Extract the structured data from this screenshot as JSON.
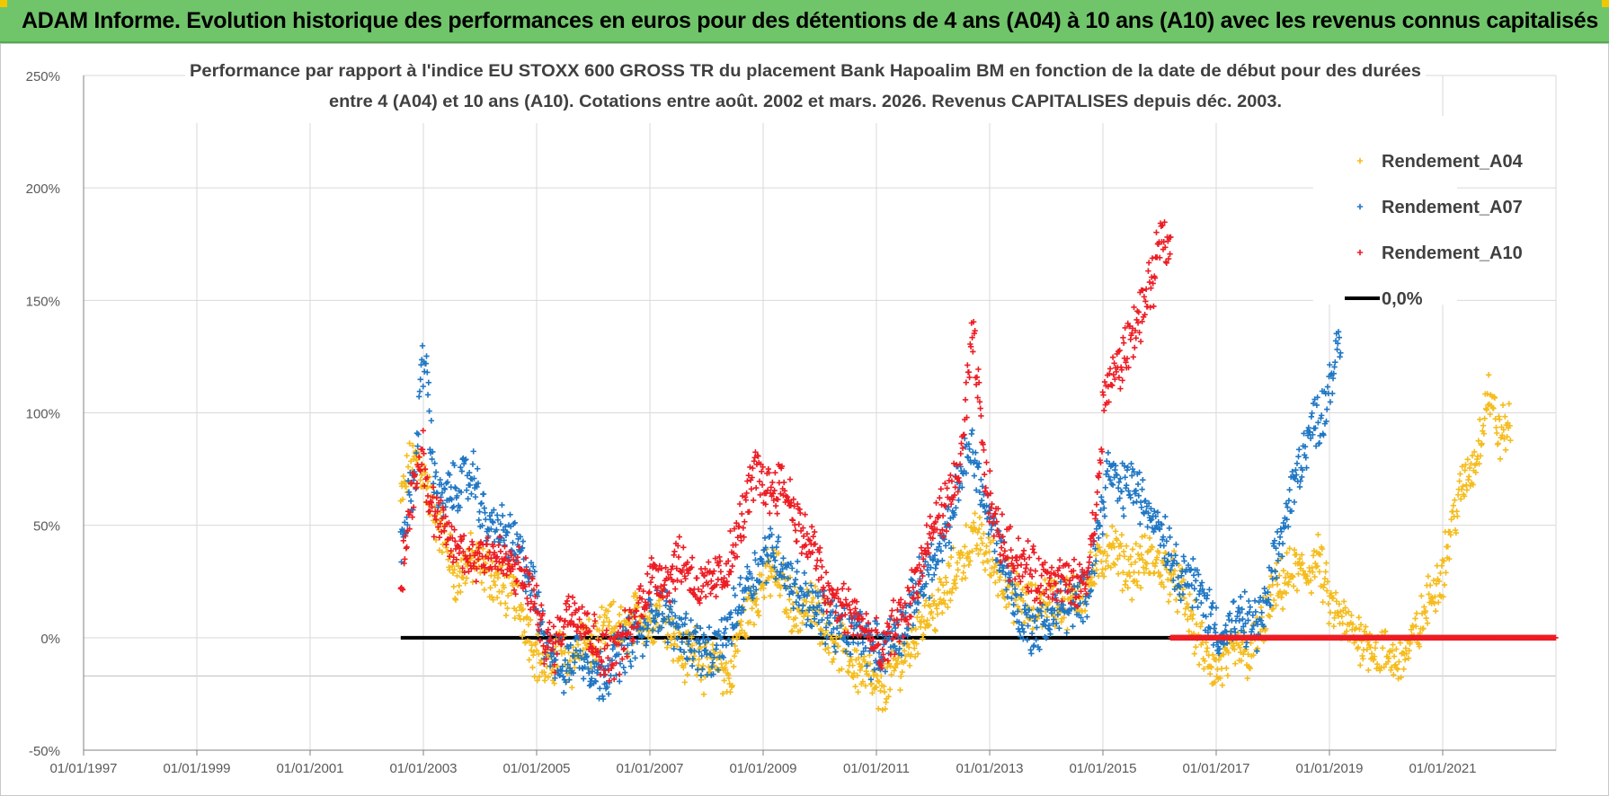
{
  "header": {
    "banner_title": "ADAM Informe. Evolution historique des performances en euros pour des détentions de 4 ans (A04) à 10 ans (A10) avec les revenus connus capitalisés"
  },
  "colors": {
    "banner": "#70c46a",
    "a04": "#f5bc1c",
    "a07": "#1f77c4",
    "a10": "#ee1c24",
    "zero": "#000000",
    "grid": "#d9d9d9"
  },
  "chart_data": {
    "type": "scatter",
    "title_line1": "Performance par rapport à l'indice EU STOXX 600 GROSS TR  du placement Bank Hapoalim BM en fonction de la date de début pour des durées",
    "title_line2": "entre 4 (A04) et 10 ans (A10). Cotations entre août. 2002 et mars. 2026. Revenus CAPITALISES depuis déc. 2003.",
    "x_range": [
      1997.0,
      2023.0
    ],
    "x_ticks": [
      {
        "label": "01/01/1997",
        "value": 1997
      },
      {
        "label": "01/01/1999",
        "value": 1999
      },
      {
        "label": "01/01/2001",
        "value": 2001
      },
      {
        "label": "01/01/2003",
        "value": 2003
      },
      {
        "label": "01/01/2005",
        "value": 2005
      },
      {
        "label": "01/01/2007",
        "value": 2007
      },
      {
        "label": "01/01/2009",
        "value": 2009
      },
      {
        "label": "01/01/2011",
        "value": 2011
      },
      {
        "label": "01/01/2013",
        "value": 2013
      },
      {
        "label": "01/01/2015",
        "value": 2015
      },
      {
        "label": "01/01/2017",
        "value": 2017
      },
      {
        "label": "01/01/2019",
        "value": 2019
      },
      {
        "label": "01/01/2021",
        "value": 2021
      }
    ],
    "y_range": [
      -50,
      250
    ],
    "y_ticks": [
      {
        "label": "-50%",
        "value": -50
      },
      {
        "label": "0%",
        "value": 0
      },
      {
        "label": "50%",
        "value": 50
      },
      {
        "label": "100%",
        "value": 100
      },
      {
        "label": "150%",
        "value": 150
      },
      {
        "label": "200%",
        "value": 200
      },
      {
        "label": "250%",
        "value": 250
      }
    ],
    "extra_gridline": -17,
    "series": [
      {
        "name": "Rendement_A04",
        "color": "#f5bc1c",
        "x_start": 2002.6,
        "x_end": 2022.2,
        "points": [
          [
            2002.6,
            60
          ],
          [
            2002.75,
            75
          ],
          [
            2002.9,
            80
          ],
          [
            2003.0,
            72
          ],
          [
            2003.2,
            55
          ],
          [
            2003.4,
            42
          ],
          [
            2003.6,
            25
          ],
          [
            2003.8,
            35
          ],
          [
            2004.0,
            32
          ],
          [
            2004.2,
            28
          ],
          [
            2004.4,
            22
          ],
          [
            2004.6,
            20
          ],
          [
            2004.8,
            8
          ],
          [
            2005.0,
            -8
          ],
          [
            2005.2,
            -15
          ],
          [
            2005.4,
            -5
          ],
          [
            2005.6,
            -12
          ],
          [
            2005.8,
            -2
          ],
          [
            2006.0,
            -5
          ],
          [
            2006.3,
            5
          ],
          [
            2006.6,
            2
          ],
          [
            2006.8,
            12
          ],
          [
            2007.0,
            5
          ],
          [
            2007.2,
            15
          ],
          [
            2007.4,
            3
          ],
          [
            2007.6,
            -10
          ],
          [
            2007.8,
            -2
          ],
          [
            2008.0,
            -15
          ],
          [
            2008.2,
            -8
          ],
          [
            2008.4,
            -20
          ],
          [
            2008.6,
            5
          ],
          [
            2008.8,
            15
          ],
          [
            2009.0,
            25
          ],
          [
            2009.2,
            30
          ],
          [
            2009.4,
            20
          ],
          [
            2009.6,
            10
          ],
          [
            2009.8,
            15
          ],
          [
            2010.0,
            10
          ],
          [
            2010.3,
            -2
          ],
          [
            2010.6,
            -12
          ],
          [
            2010.9,
            -18
          ],
          [
            2011.0,
            -25
          ],
          [
            2011.2,
            -20
          ],
          [
            2011.4,
            -10
          ],
          [
            2011.6,
            -5
          ],
          [
            2011.8,
            10
          ],
          [
            2012.0,
            12
          ],
          [
            2012.2,
            18
          ],
          [
            2012.4,
            30
          ],
          [
            2012.6,
            40
          ],
          [
            2012.8,
            45
          ],
          [
            2013.0,
            35
          ],
          [
            2013.2,
            28
          ],
          [
            2013.4,
            20
          ],
          [
            2013.6,
            15
          ],
          [
            2013.8,
            12
          ],
          [
            2014.0,
            18
          ],
          [
            2014.3,
            15
          ],
          [
            2014.6,
            20
          ],
          [
            2014.9,
            30
          ],
          [
            2015.1,
            42
          ],
          [
            2015.3,
            35
          ],
          [
            2015.5,
            30
          ],
          [
            2015.8,
            35
          ],
          [
            2016.0,
            32
          ],
          [
            2016.2,
            28
          ],
          [
            2016.4,
            20
          ],
          [
            2016.6,
            5
          ],
          [
            2016.8,
            -8
          ],
          [
            2017.0,
            -15
          ],
          [
            2017.2,
            -10
          ],
          [
            2017.4,
            -5
          ],
          [
            2017.6,
            -8
          ],
          [
            2017.8,
            5
          ],
          [
            2018.0,
            18
          ],
          [
            2018.2,
            25
          ],
          [
            2018.4,
            30
          ],
          [
            2018.6,
            28
          ],
          [
            2018.8,
            35
          ],
          [
            2019.0,
            15
          ],
          [
            2019.2,
            8
          ],
          [
            2019.4,
            2
          ],
          [
            2019.6,
            0
          ],
          [
            2019.8,
            -5
          ],
          [
            2020.0,
            -8
          ],
          [
            2020.2,
            -10
          ],
          [
            2020.4,
            -5
          ],
          [
            2020.6,
            5
          ],
          [
            2020.8,
            20
          ],
          [
            2021.0,
            30
          ],
          [
            2021.2,
            55
          ],
          [
            2021.4,
            70
          ],
          [
            2021.6,
            80
          ],
          [
            2021.8,
            110
          ],
          [
            2022.0,
            90
          ],
          [
            2022.2,
            95
          ]
        ]
      },
      {
        "name": "Rendement_A07",
        "color": "#1f77c4",
        "x_start": 2002.6,
        "x_end": 2019.2,
        "points": [
          [
            2002.6,
            40
          ],
          [
            2002.7,
            55
          ],
          [
            2002.85,
            70
          ],
          [
            2002.95,
            115
          ],
          [
            2003.05,
            125
          ],
          [
            2003.15,
            80
          ],
          [
            2003.3,
            60
          ],
          [
            2003.5,
            65
          ],
          [
            2003.7,
            70
          ],
          [
            2003.9,
            72
          ],
          [
            2004.1,
            50
          ],
          [
            2004.3,
            48
          ],
          [
            2004.5,
            45
          ],
          [
            2004.7,
            38
          ],
          [
            2004.9,
            25
          ],
          [
            2005.1,
            5
          ],
          [
            2005.3,
            -8
          ],
          [
            2005.5,
            -15
          ],
          [
            2005.7,
            -5
          ],
          [
            2005.9,
            -10
          ],
          [
            2006.1,
            -18
          ],
          [
            2006.3,
            -12
          ],
          [
            2006.5,
            -5
          ],
          [
            2006.7,
            0
          ],
          [
            2006.9,
            2
          ],
          [
            2007.1,
            15
          ],
          [
            2007.3,
            10
          ],
          [
            2007.5,
            5
          ],
          [
            2007.7,
            0
          ],
          [
            2007.9,
            -5
          ],
          [
            2008.1,
            -10
          ],
          [
            2008.3,
            0
          ],
          [
            2008.5,
            10
          ],
          [
            2008.7,
            25
          ],
          [
            2008.9,
            30
          ],
          [
            2009.1,
            40
          ],
          [
            2009.3,
            35
          ],
          [
            2009.5,
            25
          ],
          [
            2009.7,
            20
          ],
          [
            2009.9,
            12
          ],
          [
            2010.1,
            10
          ],
          [
            2010.3,
            5
          ],
          [
            2010.5,
            0
          ],
          [
            2010.7,
            5
          ],
          [
            2010.9,
            -5
          ],
          [
            2011.1,
            -5
          ],
          [
            2011.3,
            0
          ],
          [
            2011.5,
            5
          ],
          [
            2011.7,
            20
          ],
          [
            2011.9,
            30
          ],
          [
            2012.1,
            35
          ],
          [
            2012.3,
            50
          ],
          [
            2012.5,
            75
          ],
          [
            2012.7,
            85
          ],
          [
            2012.9,
            60
          ],
          [
            2013.1,
            45
          ],
          [
            2013.3,
            30
          ],
          [
            2013.5,
            10
          ],
          [
            2013.7,
            5
          ],
          [
            2013.9,
            5
          ],
          [
            2014.1,
            10
          ],
          [
            2014.3,
            15
          ],
          [
            2014.5,
            12
          ],
          [
            2014.7,
            20
          ],
          [
            2014.9,
            45
          ],
          [
            2015.1,
            75
          ],
          [
            2015.3,
            65
          ],
          [
            2015.5,
            70
          ],
          [
            2015.7,
            60
          ],
          [
            2015.9,
            55
          ],
          [
            2016.1,
            45
          ],
          [
            2016.3,
            30
          ],
          [
            2016.5,
            28
          ],
          [
            2016.7,
            20
          ],
          [
            2016.9,
            10
          ],
          [
            2017.1,
            0
          ],
          [
            2017.3,
            5
          ],
          [
            2017.5,
            8
          ],
          [
            2017.7,
            5
          ],
          [
            2017.9,
            15
          ],
          [
            2018.1,
            40
          ],
          [
            2018.3,
            60
          ],
          [
            2018.5,
            80
          ],
          [
            2018.7,
            95
          ],
          [
            2018.9,
            100
          ],
          [
            2019.0,
            115
          ],
          [
            2019.2,
            130
          ]
        ]
      },
      {
        "name": "Rendement_A10",
        "color": "#ee1c24",
        "x_start": 2002.6,
        "x_end": 2016.2,
        "points": [
          [
            2002.6,
            20
          ],
          [
            2002.7,
            45
          ],
          [
            2002.8,
            65
          ],
          [
            2002.9,
            75
          ],
          [
            2003.0,
            85
          ],
          [
            2003.1,
            60
          ],
          [
            2003.3,
            50
          ],
          [
            2003.5,
            42
          ],
          [
            2003.7,
            38
          ],
          [
            2003.9,
            35
          ],
          [
            2004.1,
            40
          ],
          [
            2004.3,
            35
          ],
          [
            2004.5,
            32
          ],
          [
            2004.7,
            28
          ],
          [
            2004.9,
            22
          ],
          [
            2005.1,
            2
          ],
          [
            2005.3,
            -5
          ],
          [
            2005.5,
            10
          ],
          [
            2005.7,
            15
          ],
          [
            2005.9,
            5
          ],
          [
            2006.1,
            -5
          ],
          [
            2006.3,
            -8
          ],
          [
            2006.5,
            -3
          ],
          [
            2006.7,
            5
          ],
          [
            2006.9,
            20
          ],
          [
            2007.1,
            30
          ],
          [
            2007.3,
            25
          ],
          [
            2007.5,
            35
          ],
          [
            2007.7,
            30
          ],
          [
            2007.9,
            20
          ],
          [
            2008.1,
            25
          ],
          [
            2008.3,
            28
          ],
          [
            2008.5,
            40
          ],
          [
            2008.7,
            60
          ],
          [
            2008.9,
            75
          ],
          [
            2009.1,
            65
          ],
          [
            2009.3,
            70
          ],
          [
            2009.5,
            60
          ],
          [
            2009.7,
            45
          ],
          [
            2009.9,
            40
          ],
          [
            2010.1,
            20
          ],
          [
            2010.3,
            15
          ],
          [
            2010.5,
            12
          ],
          [
            2010.7,
            8
          ],
          [
            2010.9,
            0
          ],
          [
            2011.1,
            -10
          ],
          [
            2011.3,
            5
          ],
          [
            2011.5,
            10
          ],
          [
            2011.7,
            25
          ],
          [
            2011.9,
            40
          ],
          [
            2012.1,
            55
          ],
          [
            2012.3,
            60
          ],
          [
            2012.5,
            80
          ],
          [
            2012.7,
            135
          ],
          [
            2012.8,
            110
          ],
          [
            2012.9,
            75
          ],
          [
            2013.1,
            50
          ],
          [
            2013.3,
            40
          ],
          [
            2013.5,
            35
          ],
          [
            2013.7,
            30
          ],
          [
            2013.9,
            25
          ],
          [
            2014.1,
            28
          ],
          [
            2014.3,
            25
          ],
          [
            2014.5,
            22
          ],
          [
            2014.7,
            25
          ],
          [
            2014.9,
            60
          ],
          [
            2015.0,
            100
          ],
          [
            2015.1,
            115
          ],
          [
            2015.3,
            120
          ],
          [
            2015.5,
            135
          ],
          [
            2015.7,
            145
          ],
          [
            2015.9,
            160
          ],
          [
            2016.0,
            175
          ],
          [
            2016.1,
            180
          ],
          [
            2016.2,
            170
          ]
        ]
      }
    ],
    "zero_line": {
      "name": "0,0%",
      "value": 0,
      "x_start": 2002.6,
      "x_end": 2023.0
    },
    "a10_after_flat": {
      "value": 0,
      "x_start": 2016.2,
      "x_end": 2023.0
    },
    "legend": [
      {
        "label": "Rendement_A04",
        "color": "#f5bc1c",
        "kind": "marker"
      },
      {
        "label": "Rendement_A07",
        "color": "#1f77c4",
        "kind": "marker"
      },
      {
        "label": "Rendement_A10",
        "color": "#ee1c24",
        "kind": "marker"
      },
      {
        "label": "0,0%",
        "color": "#000000",
        "kind": "line"
      }
    ],
    "legend_position": "top-right"
  }
}
